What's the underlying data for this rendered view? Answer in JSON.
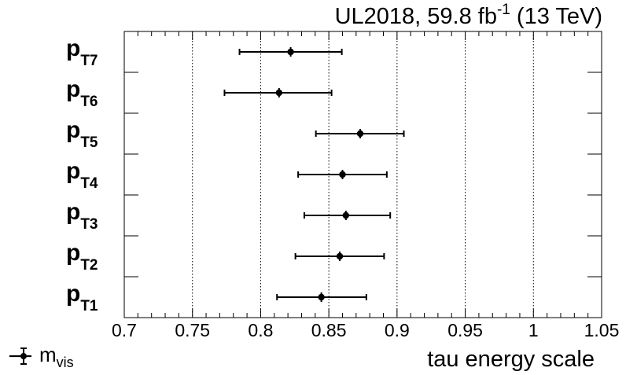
{
  "chart_data": {
    "type": "scatter",
    "title_main": "UL2018, 59.8 fb",
    "title_sup": "-1",
    "title_tail": " (13 TeV)",
    "xlabel": "tau energy scale",
    "xlim": [
      0.7,
      1.05
    ],
    "xticks": [
      0.7,
      0.75,
      0.8,
      0.85,
      0.9,
      0.95,
      1,
      1.05
    ],
    "xtick_labels": [
      "0.7",
      "0.75",
      "0.8",
      "0.85",
      "0.9",
      "0.95",
      "1",
      "1.05"
    ],
    "vertical_gridlines_at": [
      0.75,
      0.8,
      0.85,
      0.9,
      0.95,
      1
    ],
    "categories": [
      {
        "main": "p",
        "sub": "T7"
      },
      {
        "main": "p",
        "sub": "T6"
      },
      {
        "main": "p",
        "sub": "T5"
      },
      {
        "main": "p",
        "sub": "T4"
      },
      {
        "main": "p",
        "sub": "T3"
      },
      {
        "main": "p",
        "sub": "T2"
      },
      {
        "main": "p",
        "sub": "T1"
      }
    ],
    "series": [
      {
        "name": "m",
        "name_sub": "vis",
        "points": [
          {
            "category": "T7",
            "value": 0.822,
            "err_low": 0.0375,
            "err_high": 0.0375
          },
          {
            "category": "T6",
            "value": 0.8135,
            "err_low": 0.04,
            "err_high": 0.0385
          },
          {
            "category": "T5",
            "value": 0.873,
            "err_low": 0.0325,
            "err_high": 0.032
          },
          {
            "category": "T4",
            "value": 0.86,
            "err_low": 0.0325,
            "err_high": 0.0325
          },
          {
            "category": "T3",
            "value": 0.8625,
            "err_low": 0.0305,
            "err_high": 0.0325
          },
          {
            "category": "T2",
            "value": 0.858,
            "err_low": 0.0325,
            "err_high": 0.0325
          },
          {
            "category": "T1",
            "value": 0.8445,
            "err_low": 0.0325,
            "err_high": 0.033
          }
        ]
      }
    ],
    "legend_position": "bottom-left"
  }
}
